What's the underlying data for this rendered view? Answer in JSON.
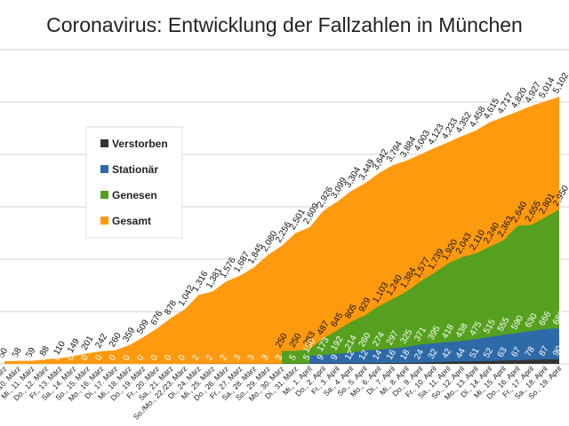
{
  "chart_data": {
    "type": "area",
    "title": "Coronavirus: Entwicklung der Fallzahlen in München",
    "categories": [
      "Mo., 9. März",
      "Di., 10. März",
      "Mi., 11. März",
      "Do., 12. März",
      "Fr., 13. März",
      "Sa., 14. März",
      "So., 15. März",
      "Mo., 16. März",
      "Di., 17. März",
      "Mi., 18. März",
      "Do., 19. März",
      "Fr., 20. März",
      "Sa., 21. März",
      "So./Mo., 22./23. März",
      "Di., 24. März",
      "Mi., 25. März",
      "Do., 26. März",
      "Fr., 27. März",
      "Sa., 28. März",
      "So., 29. März",
      "Mo., 30. März",
      "Di., 31. März",
      "Mi., 1. April",
      "Do., 2. April",
      "Fr., 3. April",
      "Sa., 4. April",
      "So., 5. April",
      "Mo., 6. April",
      "Di., 7. April",
      "Mi., 8. April",
      "Do., 9. April",
      "Fr., 10. April",
      "Sa., 11. April",
      "So., 12. April",
      "Mo., 13. April",
      "Di., 14. April",
      "Mi., 15. April",
      "Do., 16. April",
      "Fr., 17. April",
      "Sa., 18. April",
      "So., 19. April"
    ],
    "series": [
      {
        "name": "Verstorben",
        "color": "#333333",
        "label_color": "#ffffff",
        "values": [
          0,
          0,
          0,
          0,
          0,
          0,
          0,
          0,
          0,
          0,
          0,
          0,
          0,
          0,
          2,
          2,
          2,
          3,
          3,
          3,
          3,
          5,
          5,
          9,
          9,
          12,
          12,
          14,
          16,
          18,
          24,
          32,
          42,
          44,
          51,
          52,
          63,
          67,
          78,
          87,
          90
        ]
      },
      {
        "name": "Stationär",
        "color": "#2e6aa8",
        "label_color": "#ffffff",
        "values": [
          null,
          null,
          null,
          null,
          null,
          null,
          null,
          null,
          null,
          null,
          null,
          null,
          null,
          null,
          null,
          null,
          null,
          null,
          null,
          null,
          null,
          null,
          150,
          173,
          192,
          214,
          260,
          274,
          297,
          325,
          371,
          395,
          418,
          438,
          475,
          515,
          555,
          590,
          630,
          666,
          680
        ]
      },
      {
        "name": "Genesen",
        "color": "#55a01e",
        "label_color": "#111111",
        "values": [
          null,
          null,
          null,
          null,
          null,
          null,
          null,
          null,
          null,
          null,
          null,
          null,
          null,
          null,
          null,
          null,
          null,
          null,
          null,
          null,
          250,
          250,
          283,
          487,
          645,
          805,
          929,
          1103,
          1240,
          1384,
          1577,
          1739,
          1920,
          2043,
          2110,
          2240,
          2363,
          2640,
          2655,
          2801,
          2950
        ],
        "value_labels": [
          null,
          null,
          null,
          null,
          null,
          null,
          null,
          null,
          null,
          null,
          null,
          null,
          null,
          null,
          null,
          null,
          null,
          null,
          null,
          null,
          "250",
          "250",
          "283",
          "487",
          "645",
          "805",
          "929",
          "1,103",
          "1,240",
          "1,384",
          "1,577",
          "1,739",
          "1,920",
          "2,043",
          "2,110",
          "2,240",
          "2,363",
          "2,640",
          "2,655",
          "2,801",
          "2,950"
        ]
      },
      {
        "name": "Gesamt",
        "color": "#ff9a0e",
        "label_color": "#111111",
        "values": [
          50,
          58,
          59,
          88,
          110,
          149,
          201,
          242,
          260,
          359,
          509,
          676,
          878,
          1042,
          1316,
          1381,
          1576,
          1687,
          1845,
          2080,
          2256,
          2501,
          2609,
          2926,
          3099,
          3304,
          3449,
          3642,
          3794,
          3884,
          4003,
          4123,
          4233,
          4352,
          4458,
          4615,
          4717,
          4820,
          4927,
          5014,
          5102
        ],
        "value_labels": [
          "50",
          "58",
          "59",
          "88",
          "110",
          "149",
          "201",
          "242",
          "260",
          "359",
          "509",
          "676",
          "878",
          "1,042",
          "1,316",
          "1,381",
          "1,576",
          "1,687",
          "1,845",
          "2,080",
          "2,256",
          "2,501",
          "2,609",
          "2,926",
          "3,099",
          "3,304",
          "3,449",
          "3,642",
          "3,794",
          "3,884",
          "4,003",
          "4,123",
          "4,233",
          "4,352",
          "4,458",
          "4,615",
          "4,717",
          "4,820",
          "4,927",
          "5,014",
          "5,102"
        ]
      }
    ],
    "ylim": [
      0,
      6000
    ],
    "yticks": [
      0,
      1000,
      2000,
      3000,
      4000,
      5000,
      6000
    ],
    "grid": true,
    "legend": "upper left"
  }
}
